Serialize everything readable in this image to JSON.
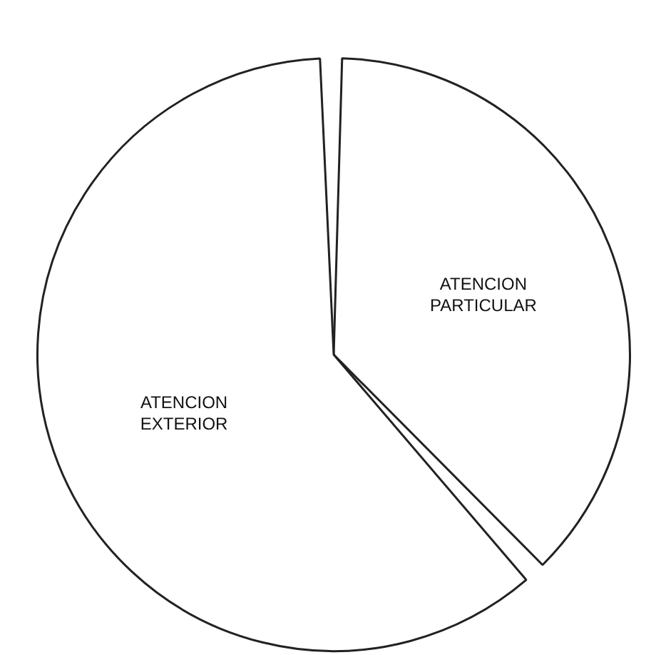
{
  "chart_data": {
    "type": "pie",
    "categories": [
      "ATENCION PARTICULAR",
      "ATENCION EXTERIOR"
    ],
    "values": [
      38,
      62
    ],
    "colors": [
      "#ffffff",
      "#ffffff"
    ],
    "legend": false,
    "data_labels": false
  }
}
